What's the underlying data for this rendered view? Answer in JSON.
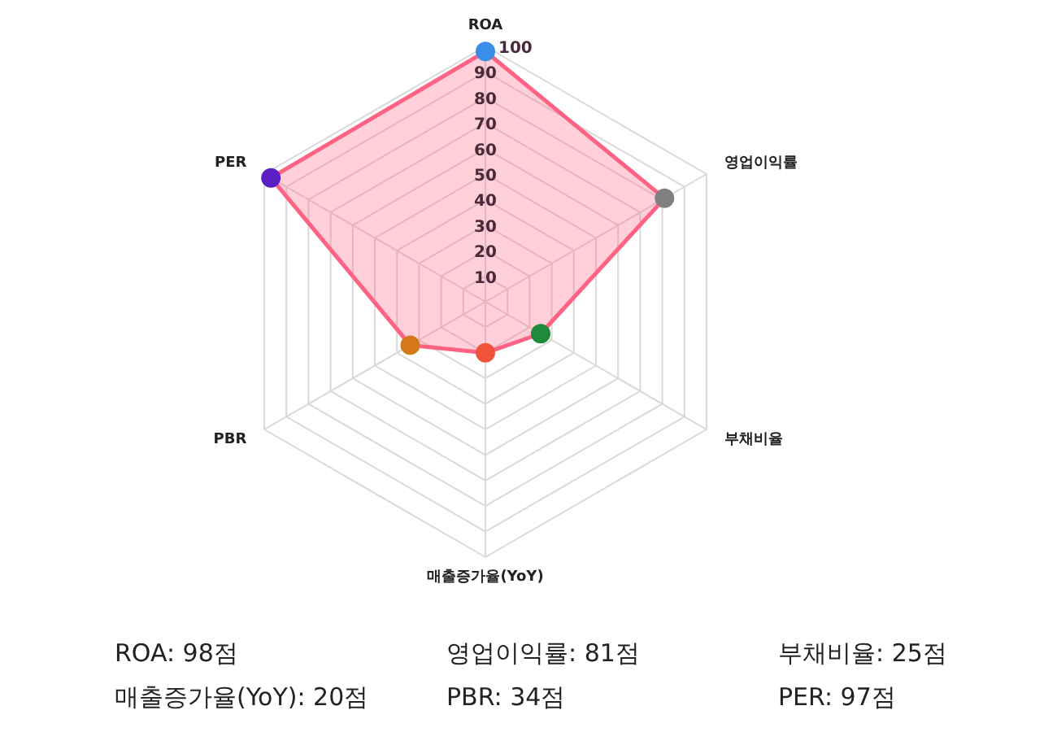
{
  "chart_data": {
    "type": "radar",
    "categories": [
      "ROA",
      "영업이익률",
      "부채비율",
      "매출증가율(YoY)",
      "PBR",
      "PER"
    ],
    "series": [
      {
        "color": "#ff6384",
        "colors": [
          "#3b8ee8",
          "#808080",
          "#1e8a3a",
          "#f0533a",
          "#d4781a",
          "#5b1fc4"
        ],
        "values": [
          98,
          81,
          25,
          20,
          34,
          97
        ]
      }
    ],
    "annotations": [
      "ROA: 98점",
      "영업이익률: 81점",
      "부채비율: 25점",
      "매출증가율(YoY): 20점",
      "PBR: 34점",
      "PER: 97점"
    ],
    "ylim": [
      0,
      100
    ],
    "yticks": [
      10,
      20,
      30,
      40,
      50,
      60,
      70,
      80,
      90,
      100
    ],
    "grid": true,
    "marker": "circle",
    "line_style": "solid"
  }
}
